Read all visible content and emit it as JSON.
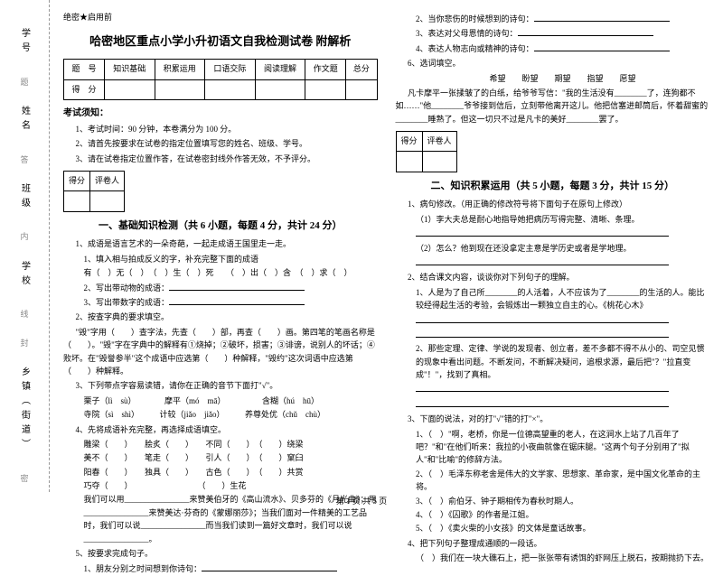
{
  "secret": "绝密★启用前",
  "title": "哈密地区重点小学小升初语文自我检测试卷 附解析",
  "scoreHeaders": [
    "题　号",
    "知识基础",
    "积累运用",
    "口语交际",
    "阅读理解",
    "作文题",
    "总分"
  ],
  "scoreRow": "得　分",
  "noticeTitle": "考试须知：",
  "notice1": "1、考试时间：90 分钟，本卷满分为 100 分。",
  "notice2": "2、请首先按要求在试卷的指定位置填写您的姓名、班级、学号。",
  "notice3": "3、请在试卷指定位置作答，在试卷密封线外作答无效，不予评分。",
  "grade": "得分",
  "grader": "评卷人",
  "sec1": "一、基础知识检测（共 6 小题，每题 4 分，共计 24 分）",
  "q1": "1、成语是语言艺术的一朵奇葩，一起走成语王国里走一走。",
  "q1a": "1、填入相与拍成反义的字，补充完整下面的成语",
  "q1a1": "有（　）无（　）　（　）生（　）死　　（　）出（　）含　（　）求（　）",
  "q1b": "2、写出带动物的成语：",
  "q1c": "3、写出带数字的成语：",
  "q2": "2、按查字典的要求填空。",
  "q2a": "\"毁\"字用（　　）查字法，先查（　　）部，再查（　　）画。第四笔的笔画名称是（　　）。\"毁\"字在字典中的解释有①烧掉；②破坏，损害；③诽谤，说别人的坏话；④败坏。在\"毁誉参半\"这个成语中应选第（　　）种解释，\"毁约\"这次词语中应选第（　　）种解释。",
  "q3": "3、下列带点字容易读错，请你在正确的音节下面打\"√\"。",
  "q3a": "栗子（lì　sù）　　　　摩平（mó　mā）　　　　　含糊（hú　hū）",
  "q3b": "寺院（sì　shì）　　　计较（jiǎo　jiǎo）　　　养尊处优（chǔ　chù）",
  "q4": "4、先将成语补充完整，再选择成语填空。",
  "q4a": "雕梁（　　）　　脍炙（　　）　　不同（　　）　（　　）绕梁",
  "q4b": "美不（　　）　　笔走（　　）　　引人（　　）　（　　）窠臼",
  "q4c": "阳春（　　）　　独具（　　）　　古色（　　）　（　　）共赏",
  "q4d": "巧夺（　　）　　　　　　　　　（　　）生花",
  "q4e": "我们可以用________________来赞美伯牙的《高山流水》、贝多芬的《月光曲》；用________________来赞美达·芬奇的《蒙娜丽莎》；当我们面对一件精美的工艺品时，我们可以说________________而当我们读到一篇好文章时，我们可以说________________。",
  "q5": "5、按要求完成句子。",
  "q5a": "1、朋友分别之时间想到你诗句：",
  "r1": "2、当你悲伤的时候想到的诗句：",
  "r2": "3、表达对父母恩情的诗句：",
  "r3": "4、表达人物志向或精神的诗句：",
  "q6": "6、选词填空。",
  "q6words": "希望　　盼望　　期望　　指望　　愿望",
  "q6text": "凡卡摩平一张揉皱了的白纸，给爷爷写信：\"我的生活没有________了，连狗都不如……\"他________爷爷接到信后，立刻带他离开这儿。他把信塞进邮筒后，怀着甜蜜的________睡熟了。但这一切只不过是凡卡的美好________罢了。",
  "sec2": "二、知识积累运用（共 5 小题，每题 3 分，共计 15 分）",
  "p1": "1、病句修改。（用正确的修改符号将下面句子在原句上修改）",
  "p1a": "（1）李大夫总是耐心地指导她把病历写得完整、清晰、条理。",
  "p1b": "（2）怎么？他到现在还没拿定主意是学历史或者是学地理。",
  "p2": "2、结合课文内容，谈谈你对下列句子的理解。",
  "p2a": "1、人是为了自己所________的人活着，人不应该为了________的生活的人。能比较经得起生活的考验，会锻炼出一颗独立自主的心。《桃花心木》",
  "p2b": "2、那些定理、定律、学说的发现者、创立者，差不多都不得不从小的、司空见惯的现象中看出问题。不断发问，不断解决疑问，追根求源，最后把\"？\"拉直变成\"！\"，找到了真相。",
  "p3": "3、下面的说法，对的打\"√\"错的打\"×\"。",
  "p3a": "1、（　）\"啊，老桥，你是一位德高望重的老人，在这涧水上站了几百年了吧？\"和\"在他们听来：我拉的小夜曲就像在锯床腿。\"这两个句子分别用了\"拟人\"和\"比喻\"的修辞方法。",
  "p3b": "2、（　）毛泽东称老舍是伟大的文学家、思想家、革命家，是中国文化革命的主将。",
  "p3c": "3、（　）俞伯牙、钟子期相传为春秋时期人。",
  "p3d": "4、（　）《囚歌》的作者是江姐。",
  "p3e": "5、（　）《卖火柴的小女孩》的文体是童话故事。",
  "p4": "4、把下列句子整理成通顺的一段话。",
  "p4a": "（　）我们在一块大礁石上，把一张张带有诱饵的虾网压上脱石，按期抛扔下去。",
  "footer": "第 1 页 共 5 页",
  "bind": {
    "l1": "学号",
    "l2": "姓名",
    "l3": "班级",
    "l4": "学校",
    "l5": "乡镇（街道）",
    "d1": "题",
    "d2": "答",
    "d3": "内",
    "d4": "线",
    "d5": "封",
    "d6": "密"
  }
}
